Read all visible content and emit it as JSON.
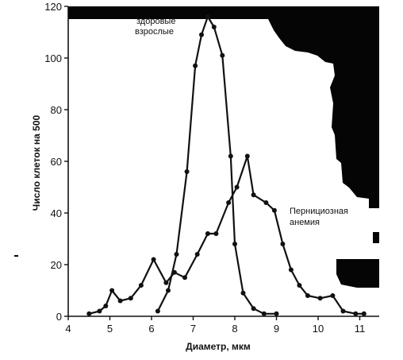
{
  "chart_data": {
    "type": "line",
    "xlabel": "Диаметр, мкм",
    "ylabel": "Число клеток на 500",
    "xlim": [
      4,
      11.3
    ],
    "ylim": [
      0,
      120
    ],
    "xticks": [
      "4",
      "5",
      "6",
      "7",
      "8",
      "9",
      "10",
      "11"
    ],
    "yticks": [
      "0",
      "20",
      "40",
      "60",
      "80",
      "100",
      "120"
    ],
    "grid": false,
    "series": [
      {
        "name": "здоровые взрослые",
        "label_lines": [
          "здоровые",
          "взрослые"
        ],
        "points": [
          [
            6.15,
            2
          ],
          [
            6.4,
            10
          ],
          [
            6.6,
            24
          ],
          [
            6.85,
            56
          ],
          [
            7.05,
            97
          ],
          [
            7.2,
            109
          ],
          [
            7.35,
            116
          ],
          [
            7.5,
            112
          ],
          [
            7.7,
            101
          ],
          [
            7.9,
            62
          ],
          [
            8.0,
            28
          ],
          [
            8.2,
            9
          ],
          [
            8.45,
            3
          ],
          [
            8.7,
            1
          ],
          [
            9.0,
            1
          ]
        ]
      },
      {
        "name": "Пернициозная анемия",
        "label_lines": [
          "Пернициозная",
          "анемия"
        ],
        "points": [
          [
            4.5,
            1
          ],
          [
            4.75,
            2
          ],
          [
            4.9,
            4
          ],
          [
            5.05,
            10
          ],
          [
            5.25,
            6
          ],
          [
            5.5,
            7
          ],
          [
            5.75,
            12
          ],
          [
            6.05,
            22
          ],
          [
            6.35,
            13
          ],
          [
            6.55,
            17
          ],
          [
            6.8,
            15
          ],
          [
            7.1,
            24
          ],
          [
            7.35,
            32
          ],
          [
            7.55,
            32
          ],
          [
            7.85,
            44
          ],
          [
            8.05,
            50
          ],
          [
            8.3,
            62
          ],
          [
            8.45,
            47
          ],
          [
            8.75,
            44
          ],
          [
            8.95,
            41
          ],
          [
            9.15,
            28
          ],
          [
            9.35,
            18
          ],
          [
            9.55,
            12
          ],
          [
            9.75,
            8
          ],
          [
            10.05,
            7
          ],
          [
            10.35,
            8
          ],
          [
            10.6,
            2
          ],
          [
            10.9,
            1
          ],
          [
            11.1,
            1
          ]
        ]
      }
    ]
  }
}
